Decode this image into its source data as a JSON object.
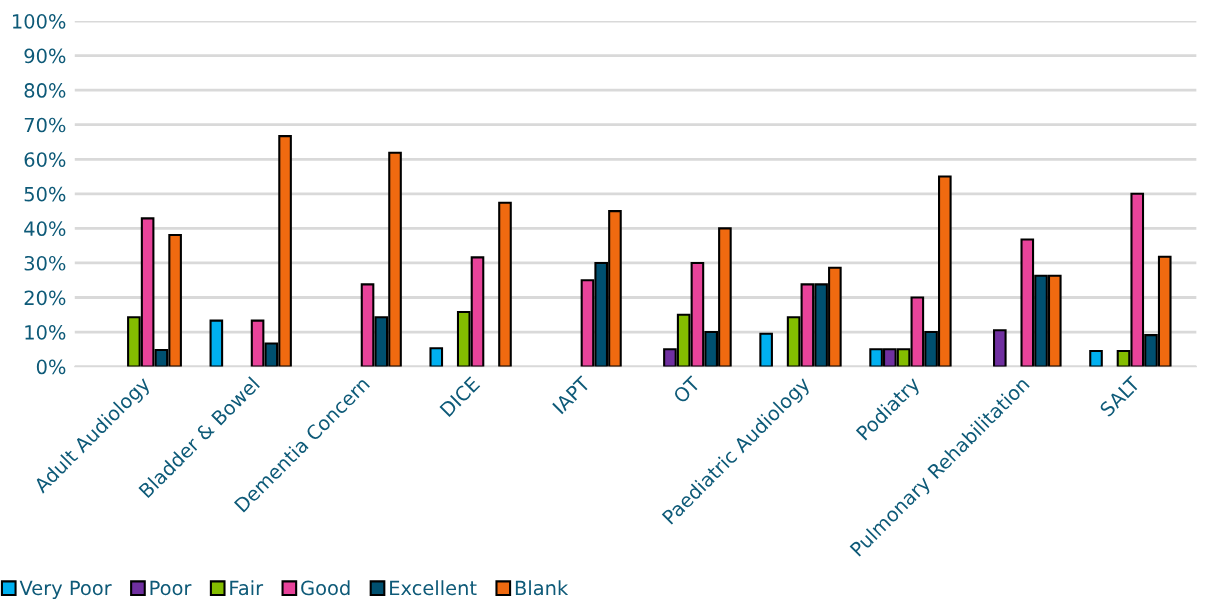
{
  "chart_data": {
    "type": "bar",
    "categories": [
      "Adult Audiology",
      "Bladder & Bowel",
      "Dementia Concern",
      "DICE",
      "IAPT",
      "OT",
      "Paediatric Audiology",
      "Podiatry",
      "Pulmonary Rehabilitation",
      "SALT"
    ],
    "series": [
      {
        "name": "Very Poor",
        "color": "#00b0f0",
        "values": [
          null,
          13.3,
          null,
          5.3,
          null,
          null,
          9.5,
          5,
          null,
          4.5
        ]
      },
      {
        "name": "Poor",
        "color": "#7030a0",
        "values": [
          null,
          null,
          null,
          null,
          null,
          5,
          null,
          5,
          10.5,
          null
        ]
      },
      {
        "name": "Fair",
        "color": "#84bd00",
        "values": [
          14.3,
          null,
          null,
          15.8,
          null,
          15,
          14.3,
          5,
          null,
          4.5
        ]
      },
      {
        "name": "Good",
        "color": "#e8439a",
        "values": [
          42.9,
          13.3,
          23.8,
          31.6,
          25,
          30,
          23.8,
          20,
          36.8,
          50
        ]
      },
      {
        "name": "Excellent",
        "color": "#005070",
        "values": [
          4.8,
          6.7,
          14.3,
          null,
          30,
          10,
          23.8,
          10,
          26.3,
          9.1
        ]
      },
      {
        "name": "Blank",
        "color": "#f06a10",
        "values": [
          38.1,
          66.7,
          61.9,
          47.4,
          45,
          40,
          28.6,
          55,
          26.3,
          31.8
        ]
      }
    ],
    "ylim": [
      0,
      100
    ],
    "yticks": [
      {
        "value": 0,
        "label": "0%"
      },
      {
        "value": 10,
        "label": "10%"
      },
      {
        "value": 20,
        "label": "20%"
      },
      {
        "value": 30,
        "label": "30%"
      },
      {
        "value": 40,
        "label": "40%"
      },
      {
        "value": 50,
        "label": "50%"
      },
      {
        "value": 60,
        "label": "60%"
      },
      {
        "value": 70,
        "label": "70%"
      },
      {
        "value": 80,
        "label": "80%"
      },
      {
        "value": 90,
        "label": "90%"
      },
      {
        "value": 100,
        "label": "100%"
      }
    ],
    "grid": "y",
    "legend": "bottom left"
  }
}
